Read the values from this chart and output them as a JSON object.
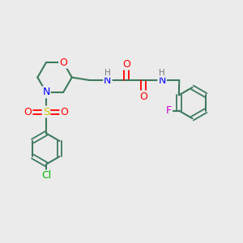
{
  "background_color": "#ebebeb",
  "bond_color": "#3d7a5e",
  "atom_colors": {
    "O": "#ff0000",
    "N": "#0000ff",
    "S": "#cccc00",
    "Cl": "#00bb00",
    "F": "#cc00cc",
    "H": "#777777",
    "C": "#3d7a5e"
  },
  "figsize": [
    3.0,
    3.0
  ],
  "dpi": 100
}
